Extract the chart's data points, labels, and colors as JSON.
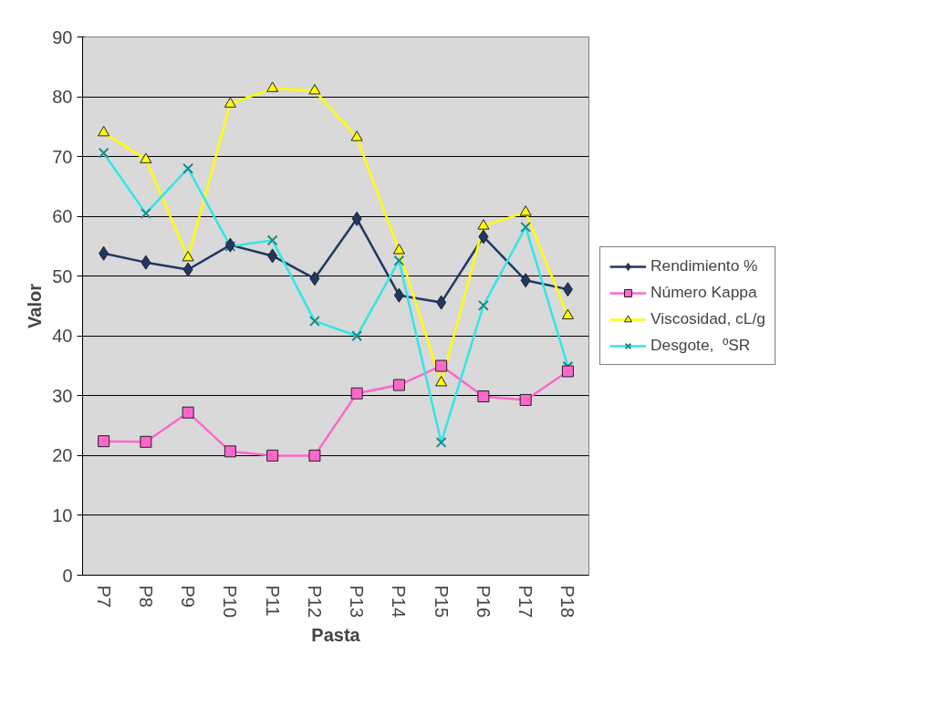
{
  "chart_data": {
    "type": "line",
    "xlabel": "Pasta",
    "ylabel": "Valor",
    "categories": [
      "P7",
      "P8",
      "P9",
      "P10",
      "P11",
      "P12",
      "P13",
      "P14",
      "P15",
      "P16",
      "P17",
      "P18"
    ],
    "series": [
      {
        "name": "Rendimiento %",
        "color": "#1f3864",
        "marker": "diamond",
        "values": [
          53.8,
          52.3,
          51.1,
          55.2,
          53.4,
          49.6,
          59.6,
          46.8,
          45.6,
          56.6,
          49.3,
          47.8
        ]
      },
      {
        "name": "Número Kappa",
        "color": "#ff66cc",
        "marker": "square",
        "values": [
          22.4,
          22.3,
          27.2,
          20.7,
          20.0,
          20.0,
          30.4,
          31.8,
          35.0,
          29.9,
          29.3,
          34.1
        ]
      },
      {
        "name": "Viscosidad, cL/g",
        "color": "#ffff00",
        "marker": "triangle",
        "values": [
          74.0,
          69.5,
          53.1,
          78.8,
          81.4,
          81.0,
          73.2,
          54.3,
          32.2,
          58.4,
          60.7,
          43.4
        ]
      },
      {
        "name": "Desgote,  ºSR",
        "color": "#33e6e6",
        "marker": "cross",
        "values": [
          70.6,
          60.5,
          68.0,
          55.0,
          56.0,
          42.5,
          40.0,
          52.6,
          22.2,
          45.1,
          58.2,
          34.9
        ]
      }
    ],
    "ylim": [
      0,
      90
    ],
    "yticks": [
      0,
      10,
      20,
      30,
      40,
      50,
      60,
      70,
      80,
      90
    ],
    "grid": "y",
    "legend": "right"
  }
}
